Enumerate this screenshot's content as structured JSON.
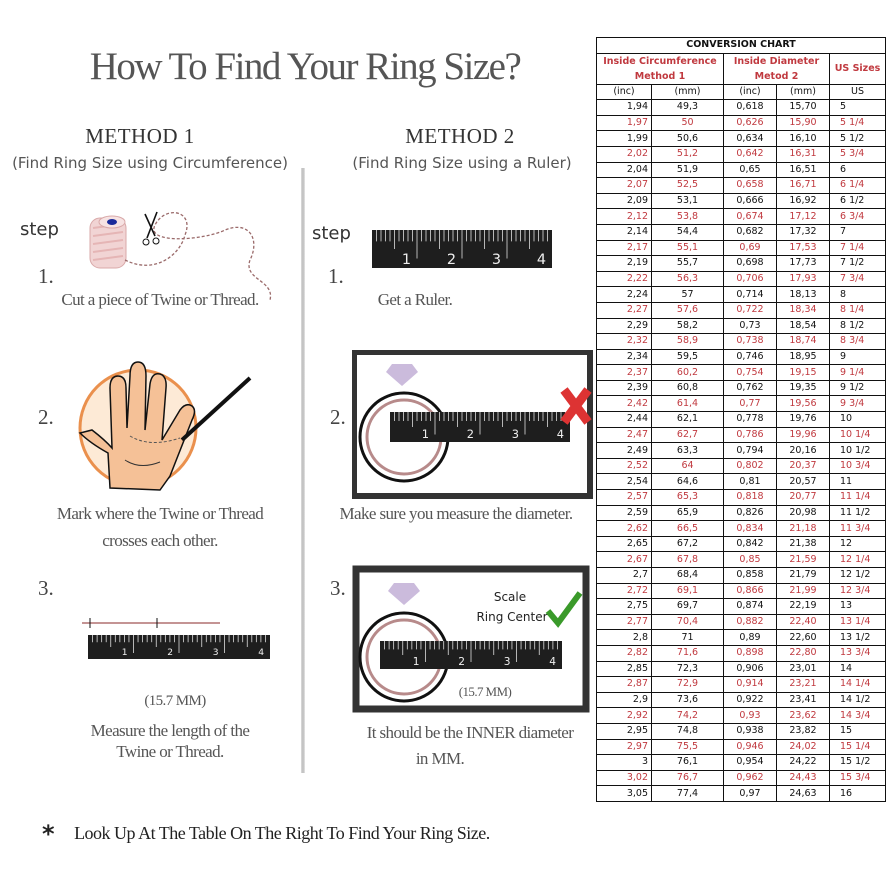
{
  "title": "How To Find Your Ring Size?",
  "method1": {
    "heading": "METHOD 1",
    "subtitle": "(Find Ring Size using Circumference)",
    "step_label": "step",
    "steps": [
      {
        "number": "1.",
        "caption": "Cut a piece of  Twine or Thread."
      },
      {
        "number": "2.",
        "caption_line1": "Mark where the Twine or Thread",
        "caption_line2": "crosses each other."
      },
      {
        "number": "3.",
        "measure": "(15.7 MM)",
        "caption_line1": "Measure the length of the",
        "caption_line2": "Twine or Thread."
      }
    ]
  },
  "method2": {
    "heading": "METHOD 2",
    "subtitle": "(Find Ring Size using a Ruler)",
    "step_label": "step",
    "steps": [
      {
        "number": "1.",
        "caption": "Get a Ruler."
      },
      {
        "number": "2.",
        "caption": "Make sure you measure the diameter."
      },
      {
        "number": "3.",
        "scale_line1": "Scale",
        "scale_line2": "Ring Center",
        "measure": "(15.7 MM)",
        "caption_line1": "It should be the INNER diameter",
        "caption_line2": "in MM."
      }
    ]
  },
  "ruler_labels": [
    "1",
    "2",
    "3",
    "4"
  ],
  "footer": {
    "star": "*",
    "text": "Look Up At The Table On The Right To Find Your Ring Size."
  },
  "colors": {
    "accent_red": "#c0393f",
    "check_green": "#3a9a2a",
    "ring_outline": "#111111",
    "hand_circle": "#e8843a"
  },
  "chart_data": {
    "type": "table",
    "title": "CONVERSION CHART",
    "group_headers": [
      {
        "line1": "Inside Circumference",
        "line2": "Method 1"
      },
      {
        "line1": "Inside Diameter",
        "line2": "Metod 2"
      },
      {
        "line1": "US Sizes"
      }
    ],
    "columns": [
      "(inc)",
      "(mm)",
      "(inc)",
      "(mm)",
      "US"
    ],
    "rows": [
      [
        "1,94",
        "49,3",
        "0,618",
        "15,70",
        "5"
      ],
      [
        "1,97",
        "50",
        "0,626",
        "15,90",
        "5 1/4"
      ],
      [
        "1,99",
        "50,6",
        "0,634",
        "16,10",
        "5 1/2"
      ],
      [
        "2,02",
        "51,2",
        "0,642",
        "16,31",
        "5 3/4"
      ],
      [
        "2,04",
        "51,9",
        "0,65",
        "16,51",
        "6"
      ],
      [
        "2,07",
        "52,5",
        "0,658",
        "16,71",
        "6 1/4"
      ],
      [
        "2,09",
        "53,1",
        "0,666",
        "16,92",
        "6 1/2"
      ],
      [
        "2,12",
        "53,8",
        "0,674",
        "17,12",
        "6 3/4"
      ],
      [
        "2,14",
        "54,4",
        "0,682",
        "17,32",
        "7"
      ],
      [
        "2,17",
        "55,1",
        "0,69",
        "17,53",
        "7 1/4"
      ],
      [
        "2,19",
        "55,7",
        "0,698",
        "17,73",
        "7 1/2"
      ],
      [
        "2,22",
        "56,3",
        "0,706",
        "17,93",
        "7 3/4"
      ],
      [
        "2,24",
        "57",
        "0,714",
        "18,13",
        "8"
      ],
      [
        "2,27",
        "57,6",
        "0,722",
        "18,34",
        "8 1/4"
      ],
      [
        "2,29",
        "58,2",
        "0,73",
        "18,54",
        "8 1/2"
      ],
      [
        "2,32",
        "58,9",
        "0,738",
        "18,74",
        "8 3/4"
      ],
      [
        "2,34",
        "59,5",
        "0,746",
        "18,95",
        "9"
      ],
      [
        "2,37",
        "60,2",
        "0,754",
        "19,15",
        "9 1/4"
      ],
      [
        "2,39",
        "60,8",
        "0,762",
        "19,35",
        "9 1/2"
      ],
      [
        "2,42",
        "61,4",
        "0,77",
        "19,56",
        "9 3/4"
      ],
      [
        "2,44",
        "62,1",
        "0,778",
        "19,76",
        "10"
      ],
      [
        "2,47",
        "62,7",
        "0,786",
        "19,96",
        "10 1/4"
      ],
      [
        "2,49",
        "63,3",
        "0,794",
        "20,16",
        "10 1/2"
      ],
      [
        "2,52",
        "64",
        "0,802",
        "20,37",
        "10 3/4"
      ],
      [
        "2,54",
        "64,6",
        "0,81",
        "20,57",
        "11"
      ],
      [
        "2,57",
        "65,3",
        "0,818",
        "20,77",
        "11 1/4"
      ],
      [
        "2,59",
        "65,9",
        "0,826",
        "20,98",
        "11 1/2"
      ],
      [
        "2,62",
        "66,5",
        "0,834",
        "21,18",
        "11 3/4"
      ],
      [
        "2,65",
        "67,2",
        "0,842",
        "21,38",
        "12"
      ],
      [
        "2,67",
        "67,8",
        "0,85",
        "21,59",
        "12 1/4"
      ],
      [
        "2,7",
        "68,4",
        "0,858",
        "21,79",
        "12 1/2"
      ],
      [
        "2,72",
        "69,1",
        "0,866",
        "21,99",
        "12 3/4"
      ],
      [
        "2,75",
        "69,7",
        "0,874",
        "22,19",
        "13"
      ],
      [
        "2,77",
        "70,4",
        "0,882",
        "22,40",
        "13 1/4"
      ],
      [
        "2,8",
        "71",
        "0,89",
        "22,60",
        "13 1/2"
      ],
      [
        "2,82",
        "71,6",
        "0,898",
        "22,80",
        "13 3/4"
      ],
      [
        "2,85",
        "72,3",
        "0,906",
        "23,01",
        "14"
      ],
      [
        "2,87",
        "72,9",
        "0,914",
        "23,21",
        "14 1/4"
      ],
      [
        "2,9",
        "73,6",
        "0,922",
        "23,41",
        "14 1/2"
      ],
      [
        "2,92",
        "74,2",
        "0,93",
        "23,62",
        "14 3/4"
      ],
      [
        "2,95",
        "74,8",
        "0,938",
        "23,82",
        "15"
      ],
      [
        "2,97",
        "75,5",
        "0,946",
        "24,02",
        "15 1/4"
      ],
      [
        "3",
        "76,1",
        "0,954",
        "24,22",
        "15 1/2"
      ],
      [
        "3,02",
        "76,7",
        "0,962",
        "24,43",
        "15 3/4"
      ],
      [
        "3,05",
        "77,4",
        "0,97",
        "24,63",
        "16"
      ]
    ]
  }
}
